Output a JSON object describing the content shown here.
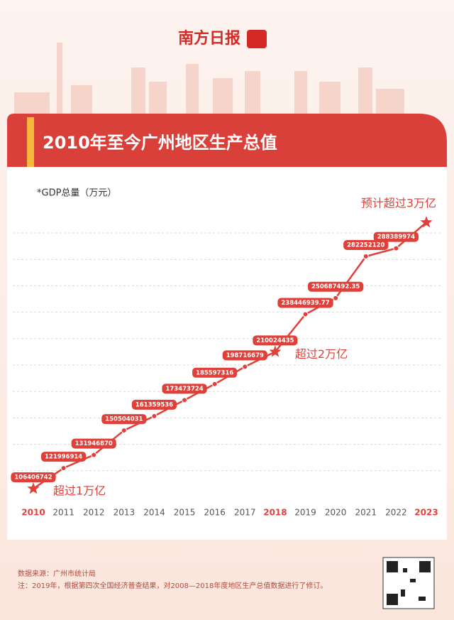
{
  "brand": "南方日报",
  "chart_data": {
    "type": "line",
    "title": "2010年至今广州地区生产总值",
    "subtitle": "*GDP总量（万元）",
    "categories": [
      "2010",
      "2011",
      "2012",
      "2013",
      "2014",
      "2015",
      "2016",
      "2017",
      "2018",
      "2019",
      "2020",
      "2021",
      "2022",
      "2023"
    ],
    "values": [
      106406742,
      121996914,
      131946870,
      150504031,
      161359536,
      173473724,
      185597316,
      198716679,
      210024435,
      238446939.77,
      250687492.35,
      282252120,
      288389974,
      308000000
    ],
    "value_labels": [
      "106406742",
      "121996914",
      "131946870",
      "150504031",
      "161359536",
      "173473724",
      "185597316",
      "198716679",
      "210024435",
      "238446939.77",
      "250687492.35",
      "282252120",
      "288389974",
      null
    ],
    "color": "#e0403a",
    "ylim": [
      100000000,
      300000000
    ],
    "yticks": [
      120000000,
      140000000,
      160000000,
      180000000,
      200000000,
      220000000,
      240000000,
      260000000,
      280000000,
      300000000
    ],
    "grid": true,
    "annotations": [
      {
        "text": "超过1万亿",
        "category": "2010"
      },
      {
        "text": "超过2万亿",
        "category": "2018"
      },
      {
        "text": "预计超过3万亿",
        "category": "2023"
      }
    ]
  },
  "footer": {
    "source": "数据来源：广州市统计局",
    "note": "注：2019年，根据第四次全国经济普查结果，对2008—2018年度地区生产总值数据进行了修订。"
  }
}
